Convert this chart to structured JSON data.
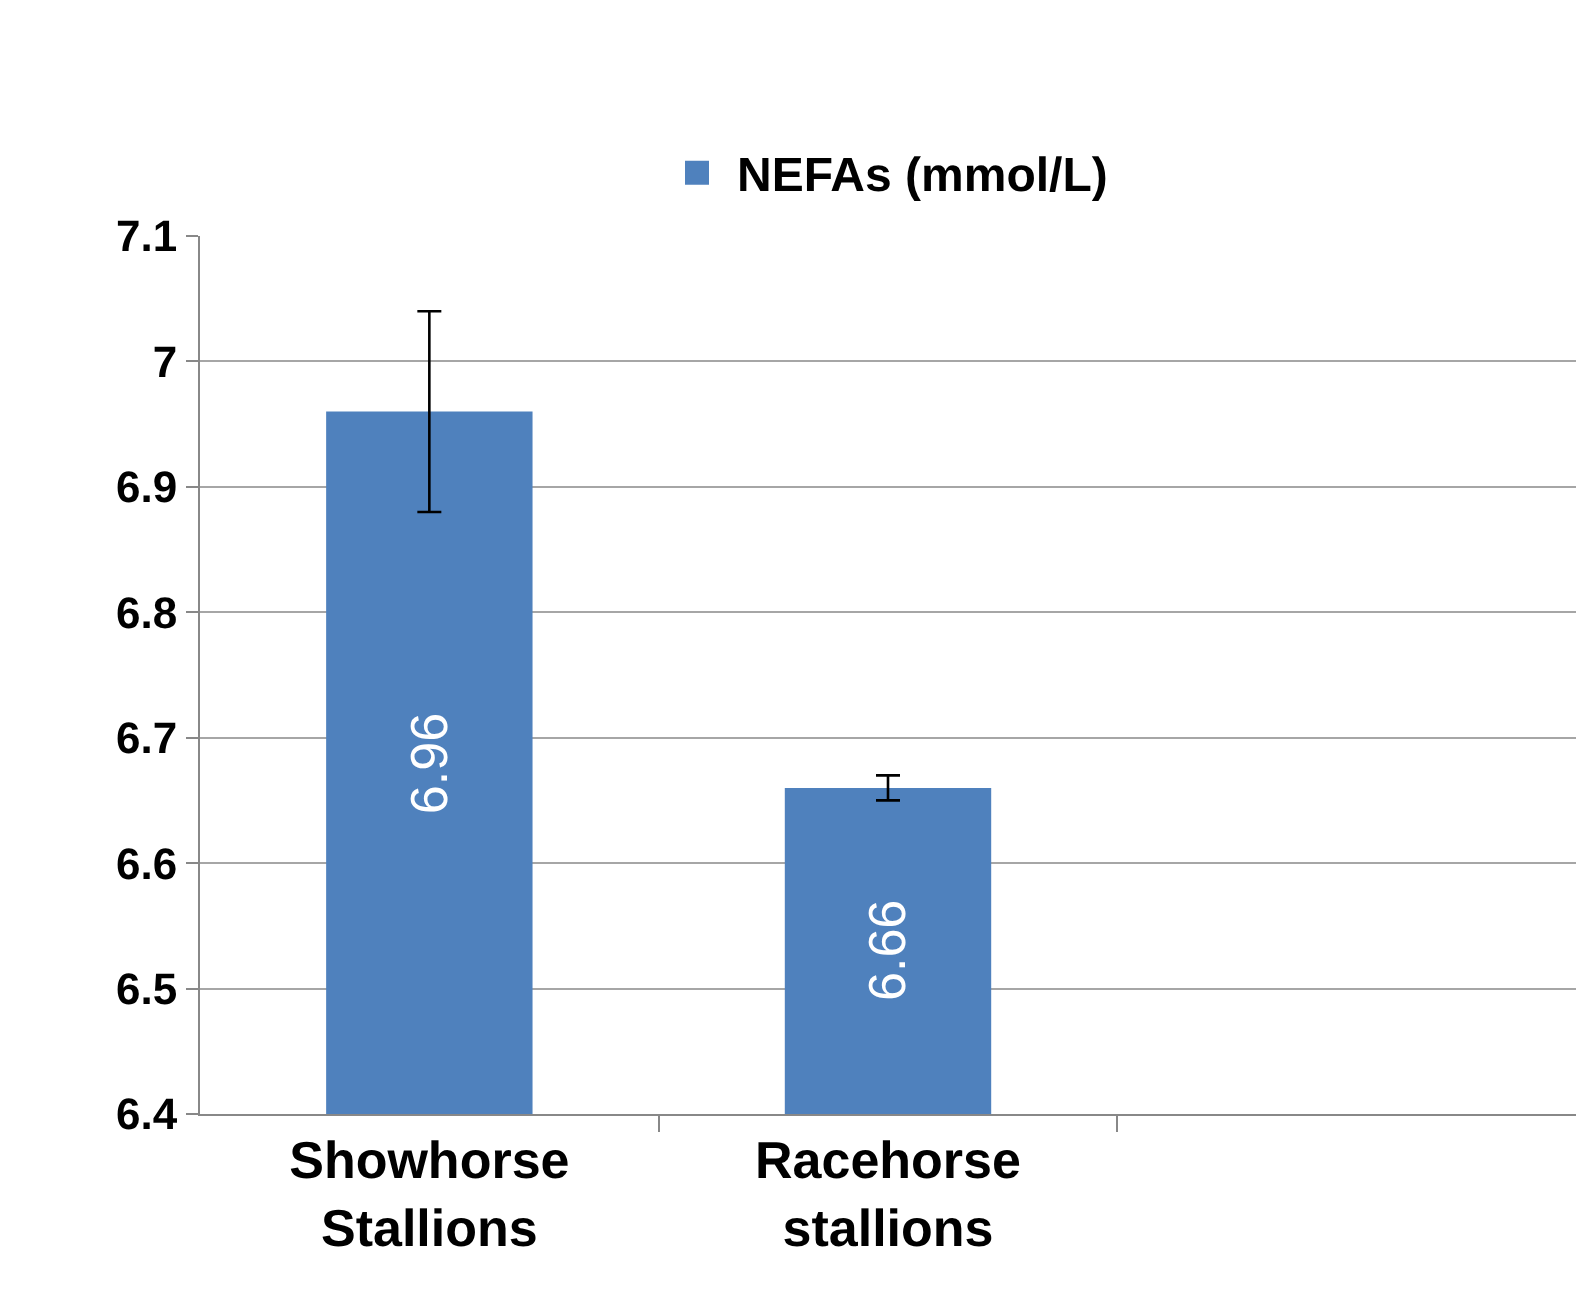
{
  "chart_data": {
    "type": "bar",
    "categories": [
      "Showhorse\nStallions",
      "Racehorse\nstallions",
      null
    ],
    "series": [
      {
        "name": "NEFAs (mmol/L)",
        "color": "#4f81bd",
        "values": [
          6.96,
          6.66,
          null
        ],
        "errors": [
          0.08,
          0.01,
          null
        ]
      }
    ],
    "ylim": [
      6.4,
      7.1
    ],
    "yticks": [
      6.4,
      6.5,
      6.6,
      6.7,
      6.8,
      6.9,
      7,
      7.1
    ],
    "grid": "y",
    "legend": "top",
    "data_labels": true
  }
}
